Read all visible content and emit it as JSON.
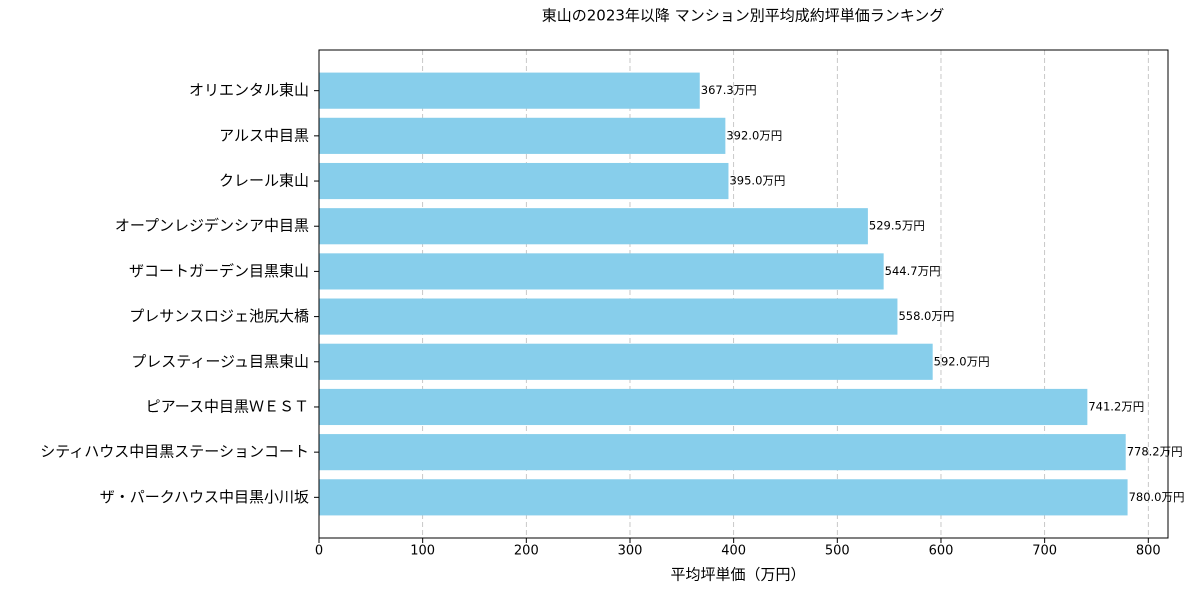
{
  "chart_data": {
    "type": "barh",
    "title": "東山の2023年以降 マンション別平均成約坪単価ランキング",
    "xlabel": "平均坪単価（万円）",
    "categories": [
      "オリエンタル東山",
      "アルス中目黒",
      "クレール東山",
      "オープンレジデンシア中目黒",
      "ザコートガーデン目黒東山",
      "プレサンスロジェ池尻大橋",
      "プレスティージュ目黒東山",
      "ピアース中目黒ＷＥＳＴ",
      "シティハウス中目黒ステーションコート",
      "ザ・パークハウス中目黒小川坂"
    ],
    "values": [
      367.3,
      392.0,
      395.0,
      529.5,
      544.7,
      558.0,
      592.0,
      741.2,
      778.2,
      780.0
    ],
    "value_labels": [
      "367.3万円",
      "392.0万円",
      "395.0万円",
      "529.5万円",
      "544.7万円",
      "558.0万円",
      "592.0万円",
      "741.2万円",
      "778.2万円",
      "780.0万円"
    ],
    "color": "#87ceeb",
    "xlim": [
      0,
      819
    ],
    "xticks": [
      0,
      100,
      200,
      300,
      400,
      500,
      600,
      700,
      800
    ],
    "grid": true
  }
}
